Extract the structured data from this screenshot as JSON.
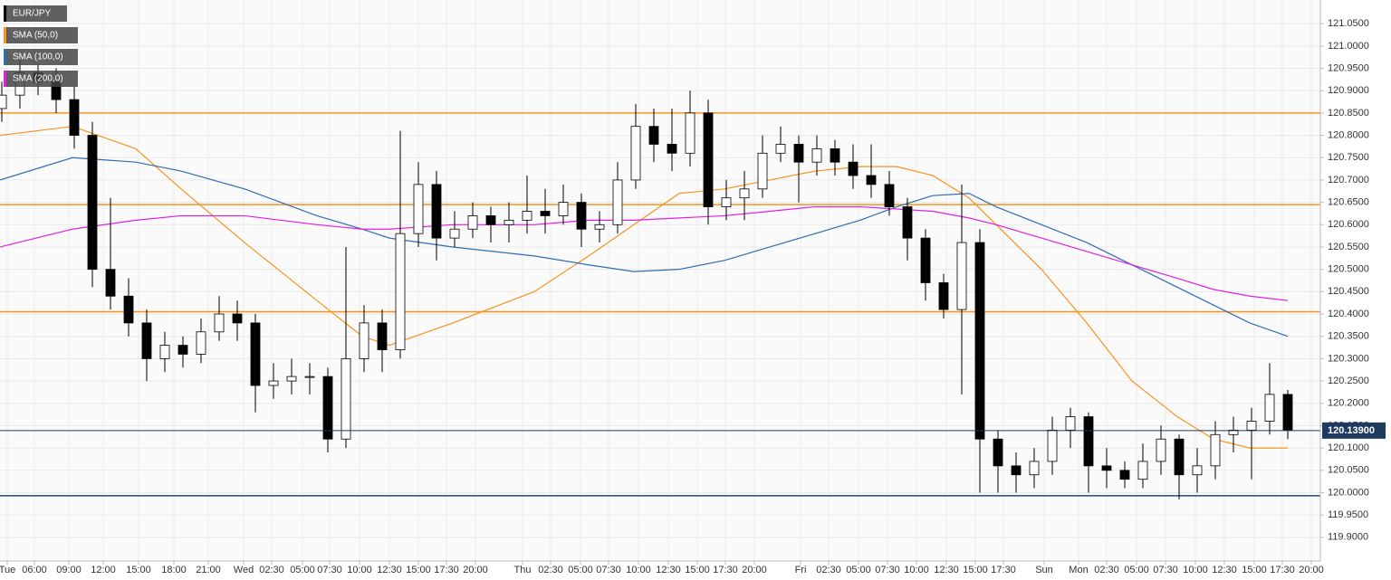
{
  "chart_data": {
    "type": "candlestick",
    "symbol": "EUR/JPY",
    "xlim": [
      -0.1,
      72.8
    ],
    "ylim": [
      119.847,
      121.103
    ],
    "grid": true,
    "up_color": "#ffffff",
    "down_color": "#000000",
    "open": [
      120.86,
      120.89,
      120.94,
      120.92,
      120.88,
      120.8,
      120.5,
      120.44,
      120.38,
      120.3,
      120.33,
      120.31,
      120.36,
      120.4,
      120.38,
      120.24,
      120.25,
      120.26,
      120.26,
      120.12,
      120.3,
      120.38,
      120.32,
      120.58,
      120.69,
      120.57,
      120.59,
      120.62,
      120.6,
      120.61,
      120.63,
      120.62,
      120.65,
      120.59,
      120.6,
      120.7,
      120.82,
      120.78,
      120.76,
      120.85,
      120.64,
      120.66,
      120.68,
      120.76,
      120.78,
      120.74,
      120.77,
      120.74,
      120.71,
      120.69,
      120.64,
      120.57,
      120.47,
      120.41,
      120.56,
      120.12,
      120.06,
      120.04,
      120.07,
      120.14,
      120.17,
      120.06,
      120.05,
      120.03,
      120.07,
      120.12,
      120.04,
      120.06,
      120.13,
      120.14,
      120.16,
      120.22
    ],
    "high": [
      120.92,
      120.97,
      120.96,
      120.95,
      120.91,
      120.83,
      120.66,
      120.48,
      120.41,
      120.36,
      120.35,
      120.39,
      120.44,
      120.43,
      120.4,
      120.29,
      120.3,
      120.29,
      120.28,
      120.55,
      120.42,
      120.41,
      120.81,
      120.74,
      120.72,
      120.63,
      120.65,
      120.64,
      120.65,
      120.71,
      120.68,
      120.69,
      120.67,
      120.63,
      120.74,
      120.87,
      120.86,
      120.86,
      120.9,
      120.88,
      120.7,
      120.72,
      120.8,
      120.82,
      120.8,
      120.8,
      120.79,
      120.78,
      120.78,
      120.72,
      120.66,
      120.59,
      120.49,
      120.69,
      120.59,
      120.14,
      120.09,
      120.1,
      120.17,
      120.19,
      120.18,
      120.1,
      120.07,
      120.11,
      120.15,
      120.13,
      120.1,
      120.16,
      120.17,
      120.19,
      120.29,
      120.23
    ],
    "low": [
      120.83,
      120.86,
      120.89,
      120.85,
      120.77,
      120.46,
      120.41,
      120.35,
      120.25,
      120.27,
      120.28,
      120.29,
      120.34,
      120.34,
      120.18,
      120.21,
      120.22,
      120.22,
      120.09,
      120.1,
      120.27,
      120.27,
      120.3,
      120.55,
      120.52,
      120.55,
      120.57,
      120.56,
      120.56,
      120.58,
      120.58,
      120.6,
      120.55,
      120.56,
      120.58,
      120.68,
      120.74,
      120.72,
      120.73,
      120.6,
      120.61,
      120.61,
      120.66,
      120.74,
      120.65,
      120.71,
      120.71,
      120.68,
      120.66,
      120.62,
      120.52,
      120.43,
      120.39,
      120.22,
      120.0,
      120.0,
      120.0,
      120.01,
      120.04,
      120.1,
      120.0,
      120.01,
      120.01,
      120.01,
      120.04,
      119.985,
      120.0,
      120.03,
      120.09,
      120.03,
      120.13,
      120.12
    ],
    "close": [
      120.89,
      120.94,
      120.92,
      120.88,
      120.8,
      120.5,
      120.44,
      120.38,
      120.3,
      120.33,
      120.31,
      120.36,
      120.4,
      120.38,
      120.24,
      120.25,
      120.26,
      120.26,
      120.12,
      120.3,
      120.38,
      120.32,
      120.58,
      120.69,
      120.57,
      120.59,
      120.62,
      120.6,
      120.61,
      120.63,
      120.62,
      120.65,
      120.59,
      120.6,
      120.7,
      120.82,
      120.78,
      120.76,
      120.85,
      120.64,
      120.66,
      120.68,
      120.76,
      120.78,
      120.74,
      120.77,
      120.74,
      120.71,
      120.69,
      120.64,
      120.57,
      120.47,
      120.41,
      120.56,
      120.12,
      120.06,
      120.04,
      120.07,
      120.14,
      120.17,
      120.06,
      120.05,
      120.03,
      120.07,
      120.12,
      120.04,
      120.06,
      120.13,
      120.14,
      120.16,
      120.22,
      120.14
    ],
    "series": [
      {
        "name": "SMA (50,0)",
        "color": "#f7931e",
        "x": [
          -0.1,
          3.9,
          7.4,
          9.9,
          13.4,
          17.4,
          19.9,
          21.4,
          24.9,
          29.4,
          32.4,
          34.9,
          37.4,
          39.9,
          42.4,
          44.9,
          47.4,
          49.4,
          51.4,
          53.4,
          54.9,
          57.4,
          59.9,
          62.4,
          64.9,
          66.9,
          68.9,
          71
        ],
        "values": [
          120.8,
          120.82,
          120.77,
          120.68,
          120.56,
          120.43,
          120.35,
          120.33,
          120.38,
          120.45,
          120.53,
          120.6,
          120.67,
          120.68,
          120.7,
          120.72,
          120.73,
          120.73,
          120.71,
          120.66,
          120.6,
          120.5,
          120.38,
          120.25,
          120.17,
          120.12,
          120.1,
          120.1
        ]
      },
      {
        "name": "SMA (100,0)",
        "color": "#2f6db5",
        "x": [
          -0.1,
          3.9,
          7.4,
          9.9,
          13.4,
          17.4,
          19.9,
          21.4,
          24.9,
          29.4,
          32.4,
          34.9,
          37.4,
          39.9,
          42.4,
          44.9,
          47.4,
          49.4,
          51.4,
          53.4,
          54.9,
          57.4,
          59.9,
          62.4,
          64.9,
          66.9,
          68.9,
          71
        ],
        "values": [
          120.7,
          120.75,
          120.74,
          120.72,
          120.68,
          120.62,
          120.59,
          120.57,
          120.55,
          120.53,
          120.51,
          120.495,
          120.5,
          120.52,
          120.55,
          120.58,
          120.61,
          120.64,
          120.665,
          120.67,
          120.64,
          120.6,
          120.56,
          120.51,
          120.46,
          120.42,
          120.38,
          120.35
        ]
      },
      {
        "name": "SMA (200,0)",
        "color": "#e020e0",
        "x": [
          -0.1,
          3.9,
          7.4,
          9.9,
          13.4,
          17.4,
          19.9,
          21.4,
          24.9,
          29.4,
          32.4,
          34.9,
          37.4,
          39.9,
          42.4,
          44.9,
          47.4,
          49.4,
          51.4,
          53.4,
          54.9,
          57.4,
          59.9,
          62.4,
          64.9,
          66.9,
          68.9,
          71
        ],
        "values": [
          120.55,
          120.59,
          120.61,
          120.62,
          120.62,
          120.6,
          120.59,
          120.59,
          120.6,
          120.6,
          120.61,
          120.61,
          120.615,
          120.62,
          120.63,
          120.64,
          120.64,
          120.635,
          120.63,
          120.615,
          120.6,
          120.57,
          120.54,
          120.51,
          120.48,
          120.455,
          120.44,
          120.43
        ]
      }
    ],
    "levels": [
      {
        "value": 120.85,
        "color": "#f7931e"
      },
      {
        "value": 120.645,
        "color": "#f7931e"
      },
      {
        "value": 120.405,
        "color": "#f7931e"
      },
      {
        "value": 119.993,
        "color": "#1f4e79"
      }
    ],
    "last_price": {
      "value": 120.139,
      "label": "120.13900",
      "color": "#1e3a5f"
    },
    "yticks": [
      {
        "value": 119.9,
        "label": "119.9000"
      },
      {
        "value": 119.95,
        "label": "119.9500"
      },
      {
        "value": 120.0,
        "label": "120.0000"
      },
      {
        "value": 120.05,
        "label": "120.0500"
      },
      {
        "value": 120.1,
        "label": "120.1000"
      },
      {
        "value": 120.15,
        "label": "120.1500"
      },
      {
        "value": 120.2,
        "label": "120.2000"
      },
      {
        "value": 120.25,
        "label": "120.2500"
      },
      {
        "value": 120.3,
        "label": "120.3000"
      },
      {
        "value": 120.35,
        "label": "120.3500"
      },
      {
        "value": 120.4,
        "label": "120.4000"
      },
      {
        "value": 120.45,
        "label": "120.4500"
      },
      {
        "value": 120.5,
        "label": "120.5000"
      },
      {
        "value": 120.55,
        "label": "120.5500"
      },
      {
        "value": 120.6,
        "label": "120.6000"
      },
      {
        "value": 120.65,
        "label": "120.6500"
      },
      {
        "value": 120.7,
        "label": "120.7000"
      },
      {
        "value": 120.75,
        "label": "120.7500"
      },
      {
        "value": 120.8,
        "label": "120.8000"
      },
      {
        "value": 120.85,
        "label": "120.8500"
      },
      {
        "value": 120.9,
        "label": "120.9000"
      },
      {
        "value": 120.95,
        "label": "120.9500"
      },
      {
        "value": 121.0,
        "label": "121.0000"
      },
      {
        "value": 121.05,
        "label": "121.0500"
      }
    ],
    "xticks": [
      {
        "value": 0.3,
        "label": "Tue"
      },
      {
        "value": 1.8,
        "label": "06:00"
      },
      {
        "value": 3.7,
        "label": "09:00"
      },
      {
        "value": 5.6,
        "label": "12:00"
      },
      {
        "value": 7.55,
        "label": "15:00"
      },
      {
        "value": 9.5,
        "label": "18:00"
      },
      {
        "value": 11.4,
        "label": "21:00"
      },
      {
        "value": 13.35,
        "label": "Wed"
      },
      {
        "value": 14.9,
        "label": "02:30"
      },
      {
        "value": 16.6,
        "label": "05:00"
      },
      {
        "value": 18.1,
        "label": "07:30"
      },
      {
        "value": 19.75,
        "label": "10:00"
      },
      {
        "value": 21.4,
        "label": "12:30"
      },
      {
        "value": 23,
        "label": "15:00"
      },
      {
        "value": 24.55,
        "label": "17:30"
      },
      {
        "value": 26.15,
        "label": "20:00"
      },
      {
        "value": 28.75,
        "label": "Thu"
      },
      {
        "value": 30.3,
        "label": "02:30"
      },
      {
        "value": 31.95,
        "label": "05:00"
      },
      {
        "value": 33.5,
        "label": "07:30"
      },
      {
        "value": 35.15,
        "label": "10:00"
      },
      {
        "value": 36.8,
        "label": "12:30"
      },
      {
        "value": 38.4,
        "label": "15:00"
      },
      {
        "value": 39.95,
        "label": "17:30"
      },
      {
        "value": 41.55,
        "label": "20:00"
      },
      {
        "value": 44.1,
        "label": "Fri"
      },
      {
        "value": 45.65,
        "label": "02:30"
      },
      {
        "value": 47.3,
        "label": "05:00"
      },
      {
        "value": 48.9,
        "label": "07:30"
      },
      {
        "value": 50.5,
        "label": "10:00"
      },
      {
        "value": 52.15,
        "label": "12:30"
      },
      {
        "value": 53.75,
        "label": "15:00"
      },
      {
        "value": 55.3,
        "label": "17:30"
      },
      {
        "value": 57.55,
        "label": "Sun"
      },
      {
        "value": 59.45,
        "label": "Mon"
      },
      {
        "value": 61,
        "label": "02:30"
      },
      {
        "value": 62.65,
        "label": "05:00"
      },
      {
        "value": 64.25,
        "label": "07:30"
      },
      {
        "value": 65.9,
        "label": "10:00"
      },
      {
        "value": 67.5,
        "label": "12:30"
      },
      {
        "value": 69.15,
        "label": "15:00"
      },
      {
        "value": 70.7,
        "label": "17:30"
      },
      {
        "value": 72.3,
        "label": "20:00"
      }
    ]
  }
}
